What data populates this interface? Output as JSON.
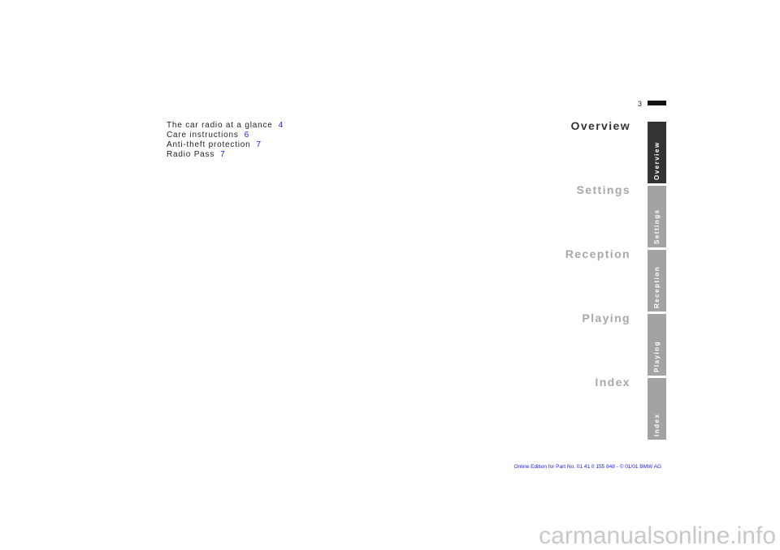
{
  "page_number": "3",
  "toc": [
    {
      "title": "The car radio at a glance",
      "page": 4
    },
    {
      "title": "Care instructions",
      "page": 6
    },
    {
      "title": "Anti-theft protection",
      "page": 7
    },
    {
      "title": "Radio Pass",
      "page": 7
    }
  ],
  "sections": [
    "Overview",
    "Settings",
    "Reception",
    "Playing",
    "Index"
  ],
  "footer": "Online Edition for Part No. 01 41 0 155 848 - © 01/01 BMW AG",
  "watermark": "carmanualsonline.info"
}
